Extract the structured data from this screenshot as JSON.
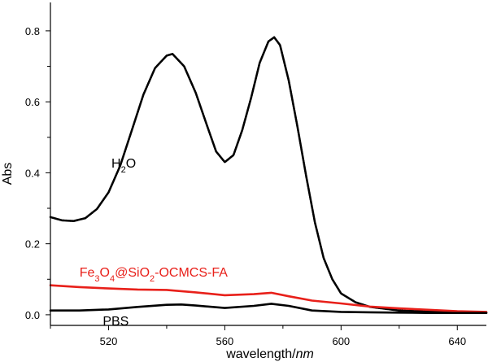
{
  "chart_data": {
    "type": "line",
    "xlabel": {
      "main": "wavelength/",
      "unit": "nm"
    },
    "ylabel": "Abs",
    "xlim": [
      500,
      650
    ],
    "ylim": [
      -0.03,
      0.88
    ],
    "x_ticks": [
      520,
      560,
      600,
      640
    ],
    "y_ticks": [
      0.0,
      0.2,
      0.4,
      0.6,
      0.8
    ],
    "x_tick_labels": [
      "520",
      "560",
      "600",
      "640"
    ],
    "y_tick_labels": [
      "0.0",
      "0.2",
      "0.4",
      "0.6",
      "0.8"
    ],
    "grid": false,
    "series": [
      {
        "name_parts": [
          [
            "H",
            ""
          ],
          [
            "2",
            "sub"
          ],
          [
            "O",
            ""
          ]
        ],
        "label_anchor": [
          521,
          0.415
        ],
        "color": "#000000",
        "dotted": true,
        "points": [
          [
            500,
            0.275
          ],
          [
            504,
            0.266
          ],
          [
            508,
            0.264
          ],
          [
            512,
            0.272
          ],
          [
            516,
            0.298
          ],
          [
            520,
            0.345
          ],
          [
            524,
            0.42
          ],
          [
            528,
            0.52
          ],
          [
            532,
            0.62
          ],
          [
            536,
            0.695
          ],
          [
            540,
            0.73
          ],
          [
            542,
            0.735
          ],
          [
            546,
            0.7
          ],
          [
            550,
            0.625
          ],
          [
            554,
            0.53
          ],
          [
            557,
            0.46
          ],
          [
            560,
            0.43
          ],
          [
            563,
            0.45
          ],
          [
            566,
            0.52
          ],
          [
            569,
            0.61
          ],
          [
            572,
            0.71
          ],
          [
            575,
            0.77
          ],
          [
            577,
            0.782
          ],
          [
            579,
            0.76
          ],
          [
            582,
            0.66
          ],
          [
            585,
            0.53
          ],
          [
            588,
            0.39
          ],
          [
            591,
            0.26
          ],
          [
            594,
            0.16
          ],
          [
            597,
            0.1
          ],
          [
            600,
            0.06
          ],
          [
            605,
            0.035
          ],
          [
            610,
            0.022
          ],
          [
            620,
            0.012
          ],
          [
            630,
            0.009
          ],
          [
            640,
            0.007
          ],
          [
            650,
            0.006
          ]
        ]
      },
      {
        "name_parts": [
          [
            "Fe",
            ""
          ],
          [
            "3",
            "sub"
          ],
          [
            "O",
            ""
          ],
          [
            "4",
            "sub"
          ],
          [
            "@SiO",
            ""
          ],
          [
            "2",
            "sub"
          ],
          [
            "-OCMCS-FA",
            ""
          ]
        ],
        "label_anchor": [
          510,
          0.107
        ],
        "color": "#e8201a",
        "dotted": false,
        "points": [
          [
            500,
            0.083
          ],
          [
            510,
            0.078
          ],
          [
            520,
            0.074
          ],
          [
            530,
            0.071
          ],
          [
            540,
            0.07
          ],
          [
            550,
            0.063
          ],
          [
            560,
            0.055
          ],
          [
            570,
            0.058
          ],
          [
            576,
            0.062
          ],
          [
            582,
            0.052
          ],
          [
            590,
            0.04
          ],
          [
            600,
            0.032
          ],
          [
            610,
            0.023
          ],
          [
            620,
            0.018
          ],
          [
            630,
            0.014
          ],
          [
            640,
            0.01
          ],
          [
            650,
            0.008
          ]
        ]
      },
      {
        "name_parts": [
          [
            "PBS",
            ""
          ]
        ],
        "label_anchor": [
          518,
          -0.03
        ],
        "color": "#000000",
        "dotted": false,
        "points": [
          [
            500,
            0.012
          ],
          [
            510,
            0.012
          ],
          [
            520,
            0.015
          ],
          [
            530,
            0.022
          ],
          [
            540,
            0.028
          ],
          [
            545,
            0.029
          ],
          [
            550,
            0.026
          ],
          [
            560,
            0.019
          ],
          [
            570,
            0.025
          ],
          [
            576,
            0.031
          ],
          [
            582,
            0.025
          ],
          [
            590,
            0.012
          ],
          [
            600,
            0.008
          ],
          [
            610,
            0.007
          ],
          [
            620,
            0.006
          ],
          [
            630,
            0.005
          ],
          [
            640,
            0.005
          ],
          [
            650,
            0.005
          ]
        ]
      }
    ]
  }
}
